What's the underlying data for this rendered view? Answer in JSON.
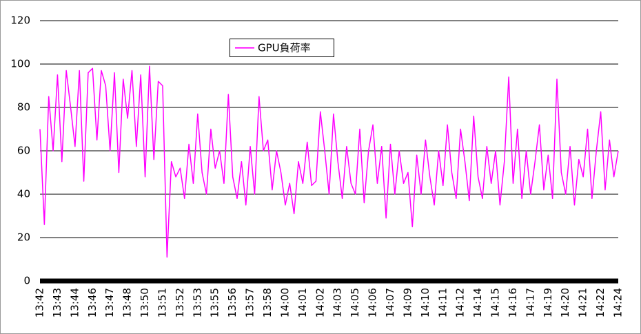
{
  "chart_data": {
    "type": "line",
    "categories": [
      "13:42",
      null,
      null,
      null,
      "13:43",
      null,
      null,
      null,
      "13:44",
      null,
      null,
      null,
      "13:46",
      null,
      null,
      null,
      "13:47",
      null,
      null,
      null,
      "13:48",
      null,
      null,
      null,
      "13:50",
      null,
      null,
      null,
      "13:51",
      null,
      null,
      null,
      "13:52",
      null,
      null,
      null,
      "13:53",
      null,
      null,
      null,
      "13:55",
      null,
      null,
      null,
      "13:56",
      null,
      null,
      null,
      "13:57",
      null,
      null,
      null,
      "13:58",
      null,
      null,
      null,
      "14:00",
      null,
      null,
      null,
      "14:01",
      null,
      null,
      null,
      "14:02",
      null,
      null,
      null,
      "14:03",
      null,
      null,
      null,
      "14:05",
      null,
      null,
      null,
      "14:06",
      null,
      null,
      null,
      "14:07",
      null,
      null,
      null,
      "14:09",
      null,
      null,
      null,
      "14:10",
      null,
      null,
      null,
      "14:11",
      null,
      null,
      null,
      "14:12",
      null,
      null,
      null,
      "14:14",
      null,
      null,
      null,
      "14:15",
      null,
      null,
      null,
      "14:16",
      null,
      null,
      null,
      "14:17",
      null,
      null,
      null,
      "14:19",
      null,
      null,
      null,
      "14:20",
      null,
      null,
      null,
      "14:21",
      null,
      null,
      null,
      "14:22",
      null,
      null,
      null,
      "14:24"
    ],
    "series": [
      {
        "name": "GPU負荷率",
        "color": "#ff00ff",
        "values": [
          70,
          26,
          85,
          60,
          95,
          55,
          97,
          80,
          62,
          97,
          46,
          96,
          98,
          65,
          97,
          90,
          60,
          96,
          50,
          93,
          75,
          97,
          62,
          95,
          48,
          99,
          56,
          92,
          90,
          11,
          55,
          48,
          52,
          38,
          63,
          45,
          77,
          50,
          40,
          70,
          52,
          60,
          45,
          86,
          48,
          38,
          55,
          35,
          62,
          40,
          85,
          60,
          65,
          42,
          60,
          50,
          35,
          45,
          31,
          55,
          45,
          64,
          44,
          46,
          78,
          60,
          40,
          77,
          55,
          38,
          62,
          45,
          40,
          70,
          36,
          60,
          72,
          45,
          62,
          29,
          63,
          40,
          60,
          45,
          50,
          25,
          58,
          40,
          65,
          48,
          35,
          60,
          44,
          72,
          50,
          38,
          70,
          55,
          37,
          76,
          48,
          38,
          62,
          45,
          60,
          35,
          55,
          94,
          45,
          70,
          38,
          60,
          40,
          55,
          72,
          42,
          58,
          38,
          93,
          50,
          40,
          62,
          35,
          56,
          48,
          70,
          38,
          60,
          78,
          42,
          65,
          48,
          60
        ]
      }
    ],
    "ylim": [
      0,
      120
    ],
    "yticks": [
      0,
      20,
      40,
      60,
      80,
      100,
      120
    ],
    "grid": true
  }
}
